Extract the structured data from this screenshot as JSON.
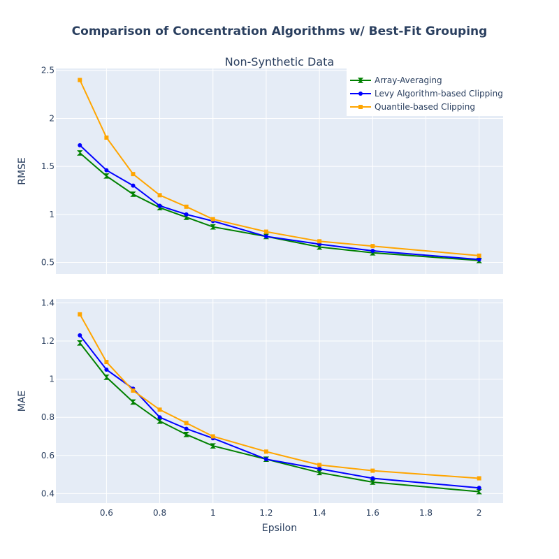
{
  "figure": {
    "title": "Comparison of Concentration Algorithms w/ Best-Fit Grouping",
    "subplot_title": "Non-Synthetic Data"
  },
  "colors": {
    "plot_bg": "#e5ecf6",
    "grid": "#ffffff",
    "text": "#2a3f5f",
    "Array-Averaging": "#008000",
    "Levy Algorithm-based Clipping": "#0000ff",
    "Quantile-based Clipping": "#ffa500"
  },
  "legend": {
    "position": "top-right",
    "entries": [
      "Array-Averaging",
      "Levy Algorithm-based Clipping",
      "Quantile-based Clipping"
    ]
  },
  "chart_data": [
    {
      "type": "line",
      "panel": "top",
      "title": "Non-Synthetic Data",
      "xlabel": "",
      "ylabel": "RMSE",
      "xlim": [
        0.41,
        2.09
      ],
      "ylim": [
        0.38,
        2.52
      ],
      "grid": true,
      "x_ticks": [
        0.6,
        0.8,
        1,
        1.2,
        1.4,
        1.6,
        1.8,
        2
      ],
      "x_tick_labels": [
        "",
        "",
        "",
        "",
        "",
        "",
        "",
        ""
      ],
      "y_ticks": [
        0.5,
        1,
        1.5,
        2,
        2.5
      ],
      "y_tick_labels": [
        "0.5",
        "1",
        "1.5",
        "2",
        "2.5"
      ],
      "x": [
        0.5,
        0.6,
        0.7,
        0.8,
        0.9,
        1.0,
        1.2,
        1.4,
        1.6,
        2.0
      ],
      "series": [
        {
          "name": "Array-Averaging",
          "marker": "hourglass",
          "values": [
            1.64,
            1.4,
            1.21,
            1.07,
            0.97,
            0.87,
            0.77,
            0.66,
            0.6,
            0.52
          ]
        },
        {
          "name": "Levy Algorithm-based Clipping",
          "marker": "circle",
          "values": [
            1.72,
            1.46,
            1.3,
            1.09,
            1.0,
            0.93,
            0.77,
            0.69,
            0.62,
            0.53
          ]
        },
        {
          "name": "Quantile-based Clipping",
          "marker": "square",
          "values": [
            2.4,
            1.8,
            1.42,
            1.2,
            1.08,
            0.95,
            0.82,
            0.72,
            0.67,
            0.57
          ]
        }
      ]
    },
    {
      "type": "line",
      "panel": "bottom",
      "title": "",
      "xlabel": "Epsilon",
      "ylabel": "MAE",
      "xlim": [
        0.41,
        2.09
      ],
      "ylim": [
        0.35,
        1.42
      ],
      "grid": true,
      "x_ticks": [
        0.6,
        0.8,
        1,
        1.2,
        1.4,
        1.6,
        1.8,
        2
      ],
      "x_tick_labels": [
        "0.6",
        "0.8",
        "1",
        "1.2",
        "1.4",
        "1.6",
        "1.8",
        "2"
      ],
      "y_ticks": [
        0.4,
        0.6,
        0.8,
        1,
        1.2,
        1.4
      ],
      "y_tick_labels": [
        "0.4",
        "0.6",
        "0.8",
        "1",
        "1.2",
        "1.4"
      ],
      "x": [
        0.5,
        0.6,
        0.7,
        0.8,
        0.9,
        1.0,
        1.2,
        1.4,
        1.6,
        2.0
      ],
      "series": [
        {
          "name": "Array-Averaging",
          "marker": "hourglass",
          "values": [
            1.19,
            1.01,
            0.88,
            0.78,
            0.71,
            0.65,
            0.58,
            0.51,
            0.46,
            0.41
          ]
        },
        {
          "name": "Levy Algorithm-based Clipping",
          "marker": "circle",
          "values": [
            1.23,
            1.05,
            0.95,
            0.8,
            0.74,
            0.69,
            0.58,
            0.53,
            0.48,
            0.43
          ]
        },
        {
          "name": "Quantile-based Clipping",
          "marker": "square",
          "values": [
            1.34,
            1.09,
            0.94,
            0.84,
            0.77,
            0.7,
            0.62,
            0.55,
            0.52,
            0.48
          ]
        }
      ]
    }
  ]
}
